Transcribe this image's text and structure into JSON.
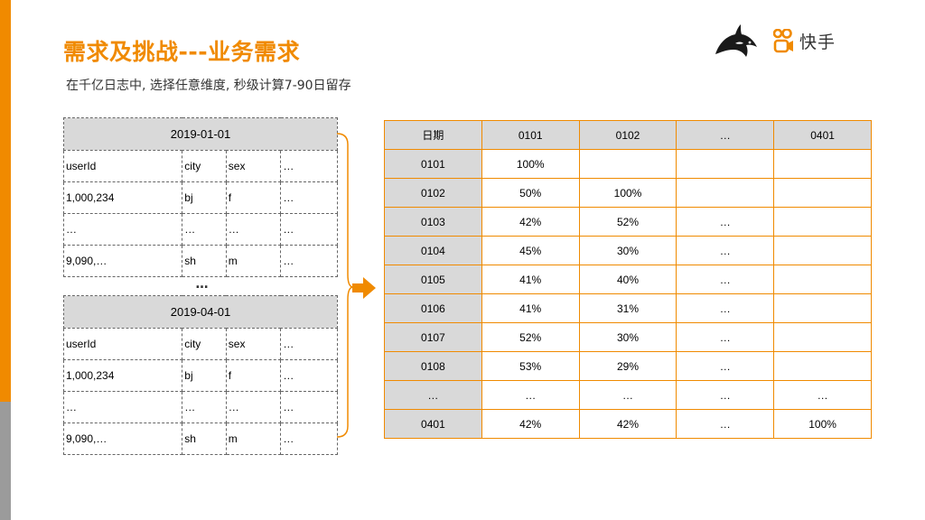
{
  "title": "需求及挑战---业务需求",
  "subtitle": "在千亿日志中, 选择任意维度, 秒级计算7-90日留存",
  "logo": {
    "text": "快手",
    "icons": [
      "whale-logo-icon",
      "kuaishou-logo-icon"
    ]
  },
  "colors": {
    "accent": "#f08a00",
    "header_fill": "#d9d9d9",
    "side_gray": "#9b9b9b"
  },
  "ellipsis": "…",
  "source_tables": [
    {
      "date": "2019-01-01",
      "rows": [
        [
          "userId",
          "city",
          "sex",
          "…"
        ],
        [
          "1,000,234",
          "bj",
          "f",
          "…"
        ],
        [
          "…",
          "…",
          "…",
          "…"
        ],
        [
          "9,090,…",
          "sh",
          "m",
          "…"
        ]
      ]
    },
    {
      "date": "2019-04-01",
      "rows": [
        [
          "userId",
          "city",
          "sex",
          "…"
        ],
        [
          "1,000,234",
          "bj",
          "f",
          "…"
        ],
        [
          "…",
          "…",
          "…",
          "…"
        ],
        [
          "9,090,…",
          "sh",
          "m",
          "…"
        ]
      ]
    }
  ],
  "retention_table": {
    "header": [
      "日期",
      "0101",
      "0102",
      "…",
      "0401"
    ],
    "rows": [
      [
        "0101",
        "100%",
        "",
        "",
        ""
      ],
      [
        "0102",
        "50%",
        "100%",
        "",
        ""
      ],
      [
        "0103",
        "42%",
        "52%",
        "…",
        ""
      ],
      [
        "0104",
        "45%",
        "30%",
        "…",
        ""
      ],
      [
        "0105",
        "41%",
        "40%",
        "…",
        ""
      ],
      [
        "0106",
        "41%",
        "31%",
        "…",
        ""
      ],
      [
        "0107",
        "52%",
        "30%",
        "…",
        ""
      ],
      [
        "0108",
        "53%",
        "29%",
        "…",
        ""
      ],
      [
        "…",
        "…",
        "…",
        "…",
        "…"
      ],
      [
        "0401",
        "42%",
        "42%",
        "…",
        "100%"
      ]
    ]
  }
}
